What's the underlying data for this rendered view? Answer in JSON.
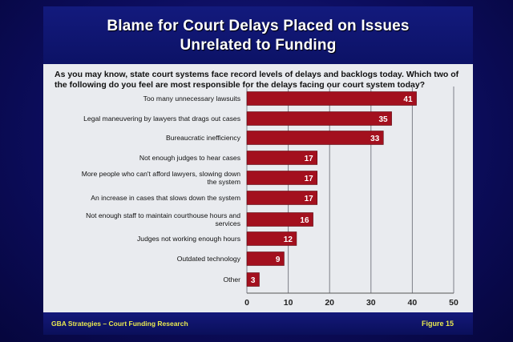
{
  "slide": {
    "title_line1": "Blame for Court Delays Placed on Issues",
    "title_line2": "Unrelated to Funding",
    "question": "As you may know, state court systems face record levels of delays and backlogs today. Which two of the following do you feel are most responsible for the delays facing our court system today?",
    "footer_left": "GBA Strategies – Court Funding Research",
    "footer_right": "Figure  15"
  },
  "colors": {
    "bar": "#a3101e",
    "title_band": "#131a7d",
    "footer_text": "#e8e850",
    "slide_bg": "#e9ebef"
  },
  "chart_data": {
    "type": "bar",
    "orientation": "horizontal",
    "categories": [
      [
        "Too many unnecessary lawsuits"
      ],
      [
        "Legal maneuvering by lawyers that drags out cases"
      ],
      [
        "Bureaucratic inefficiency"
      ],
      [
        "Not enough judges to hear cases"
      ],
      [
        "More people who can't afford lawyers, slowing down",
        "the system"
      ],
      [
        "An increase in cases that slows down the system"
      ],
      [
        "Not enough staff to maintain courthouse hours and",
        "services"
      ],
      [
        "Judges not working enough hours"
      ],
      [
        "Outdated technology"
      ],
      [
        "Other"
      ]
    ],
    "values": [
      41,
      35,
      33,
      17,
      17,
      17,
      16,
      12,
      9,
      3
    ],
    "xlim": [
      0,
      50
    ],
    "xticks": [
      0,
      10,
      20,
      30,
      40,
      50
    ],
    "grid": true,
    "data_labels": true
  }
}
